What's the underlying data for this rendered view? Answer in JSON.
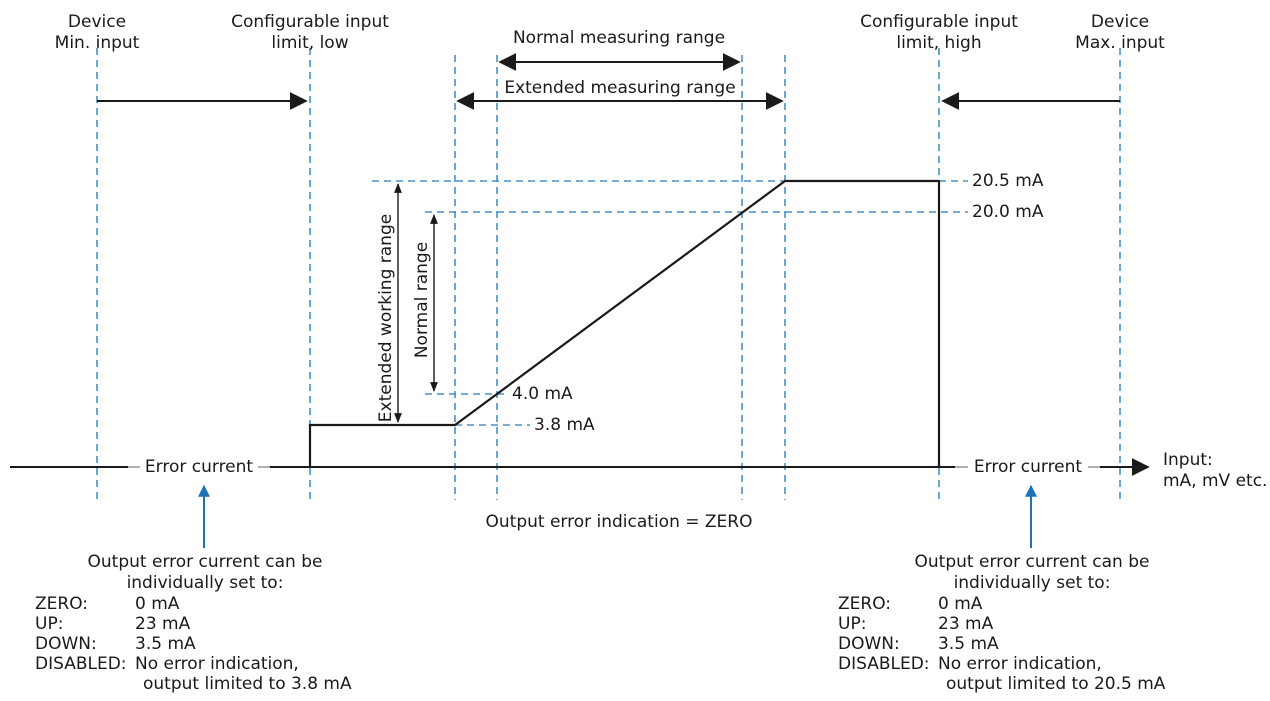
{
  "top_labels": {
    "device_min": "Device\nMin. input",
    "limit_low": "Configurable input\nlimit, low",
    "normal_measuring": "Normal measuring range",
    "extended_measuring": "Extended measuring range",
    "limit_high": "Configurable input\nlimit, high",
    "device_max": "Device\nMax. input"
  },
  "ranges": {
    "extended_working": "Extended working range",
    "normal": "Normal range"
  },
  "levels": {
    "l205": "20.5 mA",
    "l200": "20.0 mA",
    "l40": "4.0 mA",
    "l38": "3.8 mA"
  },
  "axis": {
    "error_left": "Error current",
    "error_right": "Error current",
    "input_label": "Input:\nmA, mV etc.",
    "output_error": "Output error indication = ZERO"
  },
  "left_box": {
    "heading": "Output error current can be\nindividually set to:",
    "options": [
      {
        "key": "ZERO:",
        "value": "0 mA"
      },
      {
        "key": "UP:",
        "value": "23 mA"
      },
      {
        "key": "DOWN:",
        "value": "3.5 mA"
      },
      {
        "key": "DISABLED:",
        "value": "No error indication,"
      }
    ],
    "continuation": "output limited to 3.8 mA"
  },
  "right_box": {
    "heading": "Output error current can be\nindividually set to:",
    "options": [
      {
        "key": "ZERO:",
        "value": "0 mA"
      },
      {
        "key": "UP:",
        "value": "23 mA"
      },
      {
        "key": "DOWN:",
        "value": "3.5 mA"
      },
      {
        "key": "DISABLED:",
        "value": "No error indication,"
      }
    ],
    "continuation": "output limited to 20.5 mA"
  },
  "colors": {
    "dashed": "#4a90c8",
    "line": "#1a1a1a",
    "arrow_blue": "#1e73b8",
    "gray": "#b0b0b0"
  }
}
